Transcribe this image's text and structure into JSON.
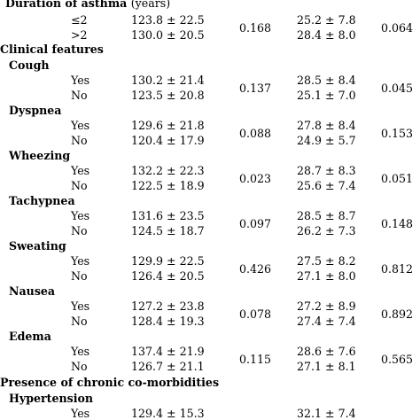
{
  "table": {
    "duration_section": {
      "title": "Duration of asthma",
      "unit": "(years)",
      "rows": [
        {
          "level": "≤2",
          "col1": "123.8 ± 22.5",
          "col2": "25.2 ± 7.8"
        },
        {
          "level": ">2",
          "col1": "130.0 ± 20.5",
          "col2": "28.4 ± 8.0"
        }
      ],
      "p1": "0.168",
      "p2": "0.064"
    },
    "clinical_features_title": "Clinical features",
    "features": [
      {
        "name": "Cough",
        "rows": [
          {
            "level": "Yes",
            "col1": "130.2 ± 21.4",
            "col2": "28.5 ± 8.4"
          },
          {
            "level": "No",
            "col1": "123.5 ± 20.8",
            "col2": "25.1 ± 7.0"
          }
        ],
        "p1": "0.137",
        "p2": "0.045"
      },
      {
        "name": "Dyspnea",
        "rows": [
          {
            "level": "Yes",
            "col1": "129.6 ± 21.8",
            "col2": "27.8 ± 8.4"
          },
          {
            "level": "No",
            "col1": "120.4 ± 17.9",
            "col2": "24.9 ± 5.7"
          }
        ],
        "p1": "0.088",
        "p2": "0.153"
      },
      {
        "name": "Wheezing",
        "rows": [
          {
            "level": "Yes",
            "col1": "132.2 ± 22.3",
            "col2": "28.7 ± 8.3"
          },
          {
            "level": "No",
            "col1": "122.5 ± 18.9",
            "col2": "25.6 ± 7.4"
          }
        ],
        "p1": "0.023",
        "p2": "0.051"
      },
      {
        "name": "Tachypnea",
        "rows": [
          {
            "level": "Yes",
            "col1": "131.6 ± 23.5",
            "col2": "28.5 ± 8.7"
          },
          {
            "level": "No",
            "col1": "124.5 ± 18.7",
            "col2": "26.2 ± 7.3"
          }
        ],
        "p1": "0.097",
        "p2": "0.148"
      },
      {
        "name": "Sweating",
        "rows": [
          {
            "level": "Yes",
            "col1": "129.9 ± 22.5",
            "col2": "27.5 ± 8.2"
          },
          {
            "level": "No",
            "col1": "126.4 ± 20.5",
            "col2": "27.1 ± 8.0"
          }
        ],
        "p1": "0.426",
        "p2": "0.812"
      },
      {
        "name": "Nausea",
        "rows": [
          {
            "level": "Yes",
            "col1": "127.2 ± 23.8",
            "col2": "27.2 ± 8.9"
          },
          {
            "level": "No",
            "col1": "128.4 ± 19.3",
            "col2": "27.4 ± 7.4"
          }
        ],
        "p1": "0.078",
        "p2": "0.892"
      },
      {
        "name": "Edema",
        "rows": [
          {
            "level": "Yes",
            "col1": "137.4 ± 21.9",
            "col2": "28.6 ± 7.6"
          },
          {
            "level": "No",
            "col1": "126.7 ± 21.1",
            "col2": "27.1 ± 8.1"
          }
        ],
        "p1": "0.115",
        "p2": "0.565"
      }
    ],
    "comorbidities_title": "Presence of chronic co-morbidities",
    "hypertension": {
      "name": "Hypertension",
      "rows": [
        {
          "level": "Yes",
          "col1": "129.4 ± 15.3",
          "col2": "32.1 ± 7.4"
        }
      ]
    }
  }
}
